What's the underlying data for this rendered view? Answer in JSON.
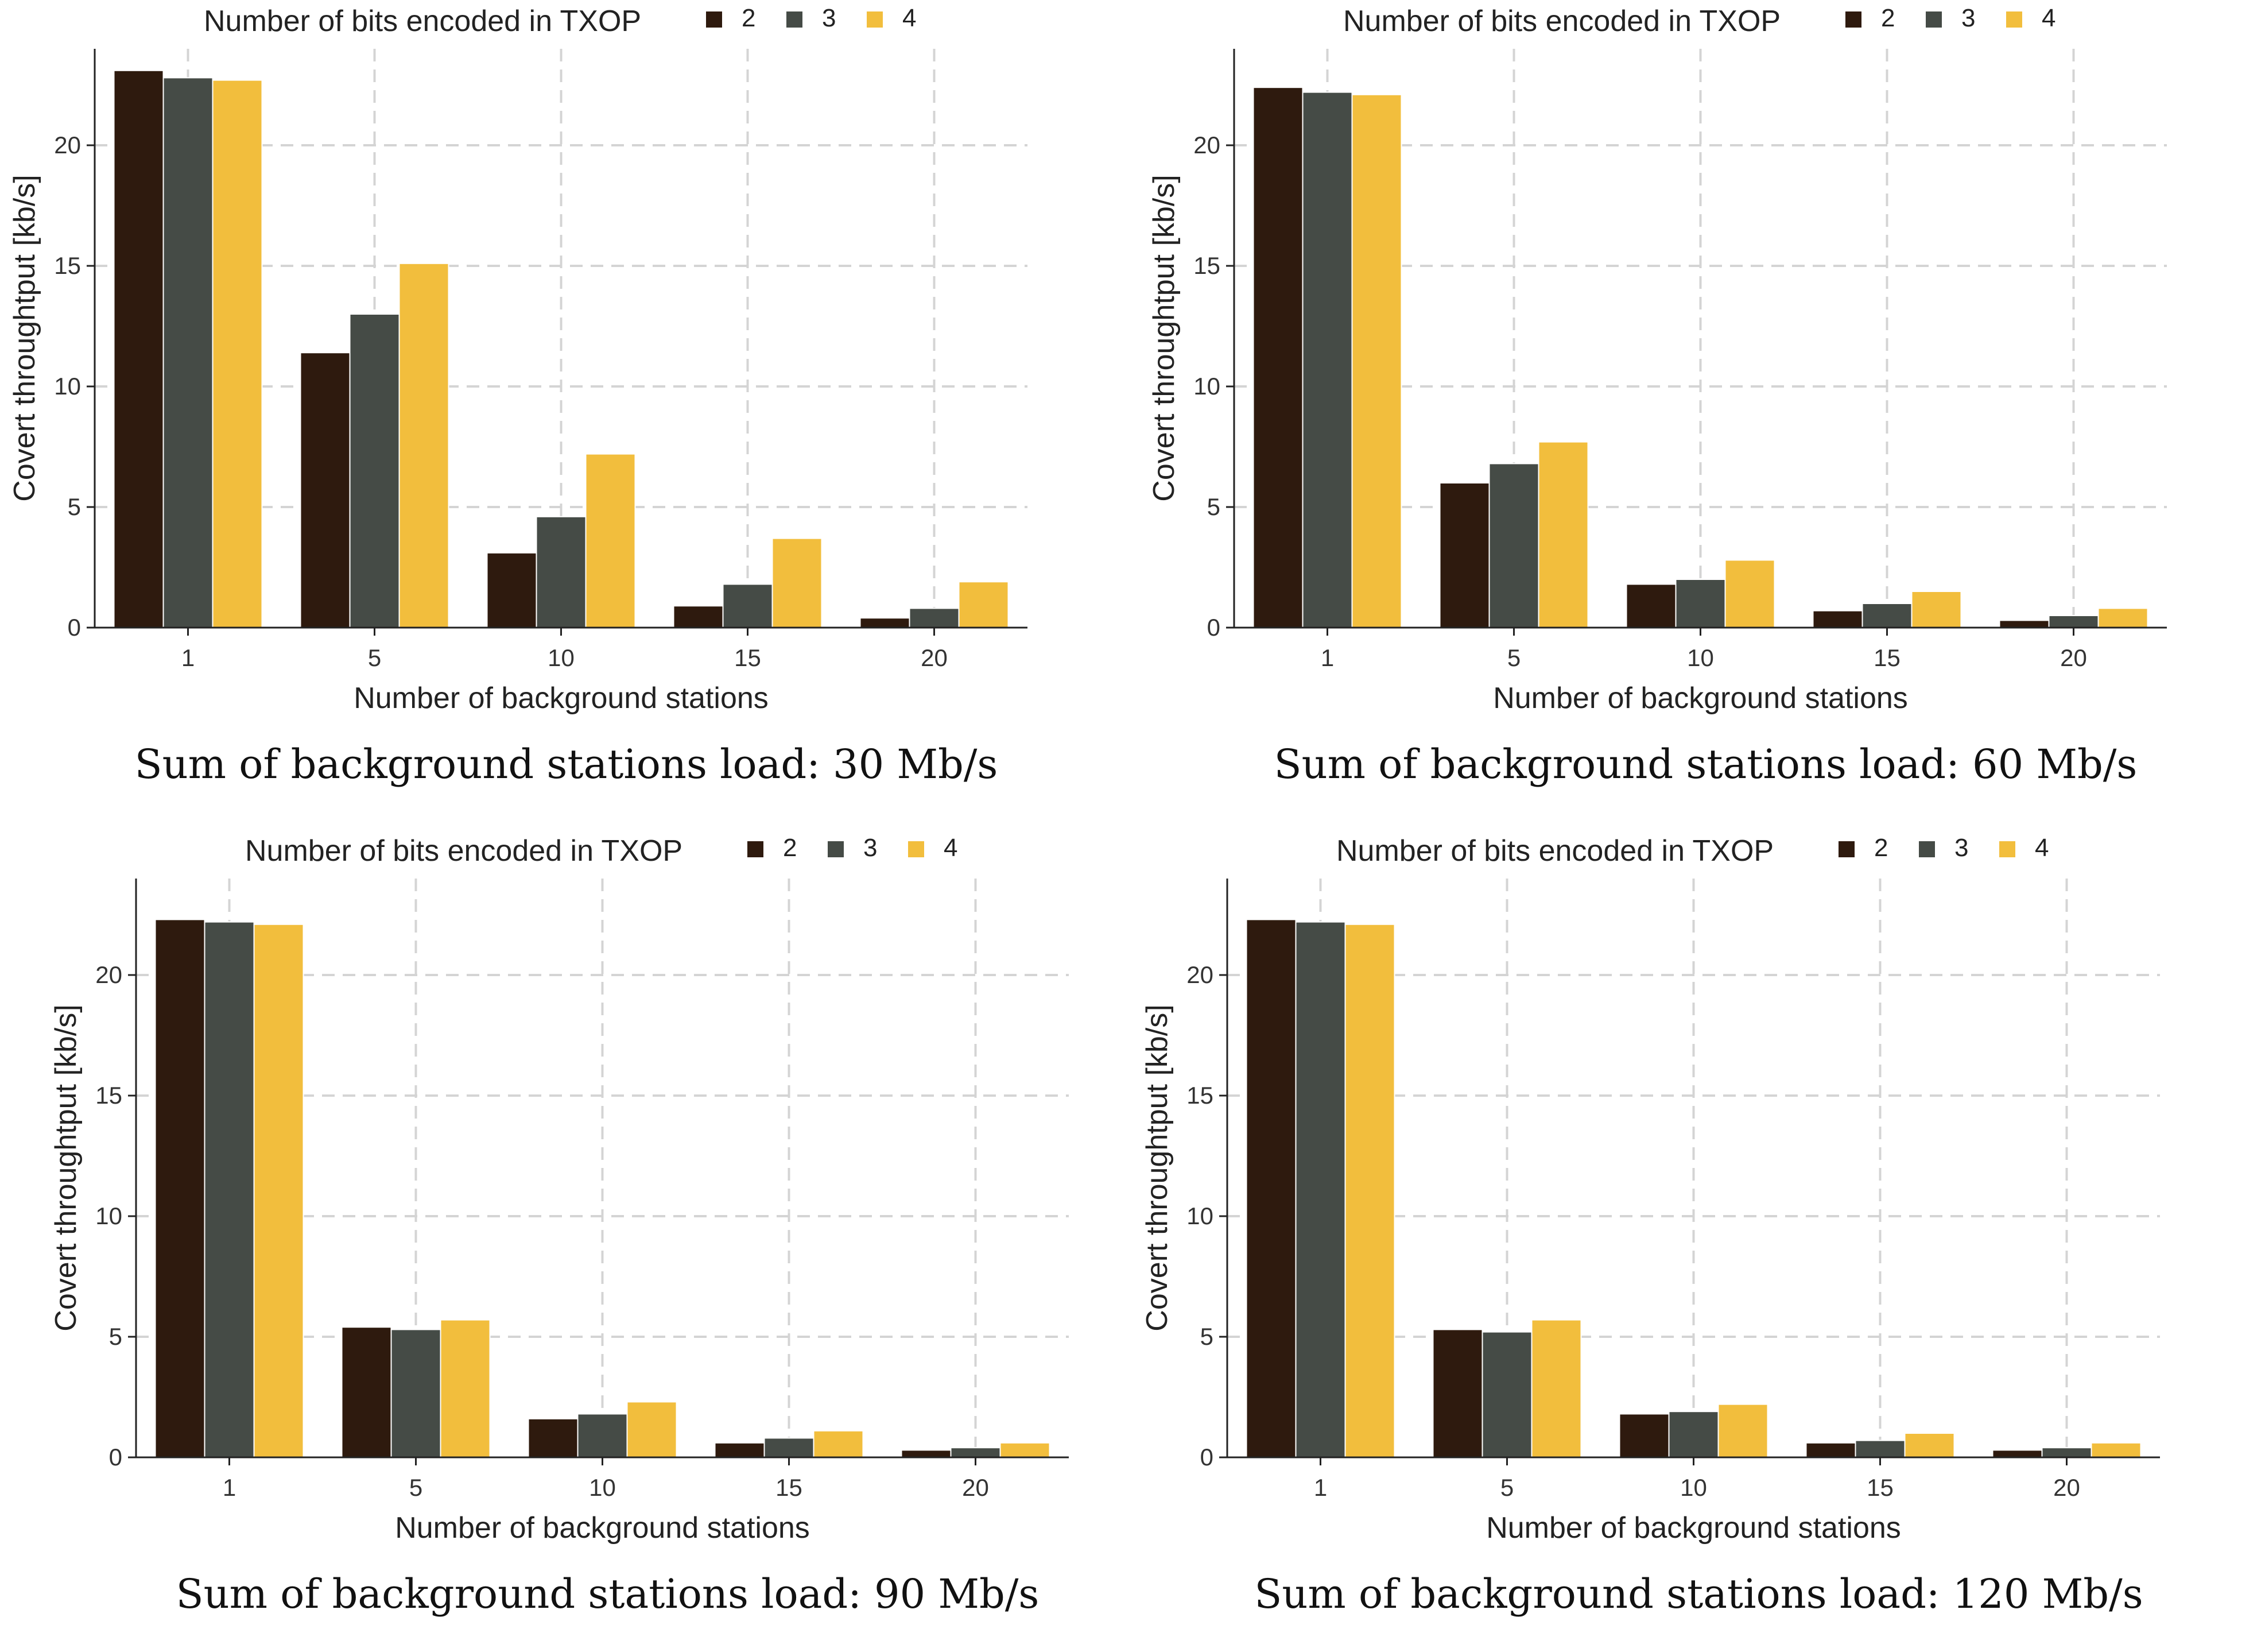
{
  "figure": {
    "legend_title": "Number of bits encoded in TXOP",
    "xlabel": "Number of background stations",
    "ylabel": "Covert throughtput [kb/s]",
    "colors": {
      "2": "#2e1a0e",
      "3": "#454b46",
      "4": "#f2be3d"
    }
  },
  "chart_data": [
    {
      "type": "bar",
      "caption": "Sum of background stations load: 30 Mb/s",
      "legend_title": "Number of bits encoded in TXOP",
      "xlabel": "Number of background stations",
      "ylabel": "Covert throughtput [kb/s]",
      "categories": [
        "1",
        "5",
        "10",
        "15",
        "20"
      ],
      "ylim": [
        0,
        24
      ],
      "yticks": [
        "0",
        "5",
        "10",
        "15",
        "20"
      ],
      "series": [
        {
          "name": "2",
          "color": "#2e1a0e",
          "values": [
            23.1,
            11.4,
            3.1,
            0.9,
            0.4
          ]
        },
        {
          "name": "3",
          "color": "#454b46",
          "values": [
            22.8,
            13.0,
            4.6,
            1.8,
            0.8
          ]
        },
        {
          "name": "4",
          "color": "#f2be3d",
          "values": [
            22.7,
            15.1,
            7.2,
            3.7,
            1.9
          ]
        }
      ]
    },
    {
      "type": "bar",
      "caption": "Sum of background stations load: 60 Mb/s",
      "legend_title": "Number of bits encoded in TXOP",
      "xlabel": "Number of background stations",
      "ylabel": "Covert throughtput [kb/s]",
      "categories": [
        "1",
        "5",
        "10",
        "15",
        "20"
      ],
      "ylim": [
        0,
        24
      ],
      "yticks": [
        "0",
        "5",
        "10",
        "15",
        "20"
      ],
      "series": [
        {
          "name": "2",
          "color": "#2e1a0e",
          "values": [
            22.4,
            6.0,
            1.8,
            0.7,
            0.3
          ]
        },
        {
          "name": "3",
          "color": "#454b46",
          "values": [
            22.2,
            6.8,
            2.0,
            1.0,
            0.5
          ]
        },
        {
          "name": "4",
          "color": "#f2be3d",
          "values": [
            22.1,
            7.7,
            2.8,
            1.5,
            0.8
          ]
        }
      ]
    },
    {
      "type": "bar",
      "caption": "Sum of background stations load: 90 Mb/s",
      "legend_title": "Number of bits encoded in TXOP",
      "xlabel": "Number of background stations",
      "ylabel": "Covert throughtput [kb/s]",
      "categories": [
        "1",
        "5",
        "10",
        "15",
        "20"
      ],
      "ylim": [
        0,
        24
      ],
      "yticks": [
        "0",
        "5",
        "10",
        "15",
        "20"
      ],
      "series": [
        {
          "name": "2",
          "color": "#2e1a0e",
          "values": [
            22.3,
            5.4,
            1.6,
            0.6,
            0.3
          ]
        },
        {
          "name": "3",
          "color": "#454b46",
          "values": [
            22.2,
            5.3,
            1.8,
            0.8,
            0.4
          ]
        },
        {
          "name": "4",
          "color": "#f2be3d",
          "values": [
            22.1,
            5.7,
            2.3,
            1.1,
            0.6
          ]
        }
      ]
    },
    {
      "type": "bar",
      "caption": "Sum of background stations load: 120 Mb/s",
      "legend_title": "Number of bits encoded in TXOP",
      "xlabel": "Number of background stations",
      "ylabel": "Covert throughtput [kb/s]",
      "categories": [
        "1",
        "5",
        "10",
        "15",
        "20"
      ],
      "ylim": [
        0,
        24
      ],
      "yticks": [
        "0",
        "5",
        "10",
        "15",
        "20"
      ],
      "series": [
        {
          "name": "2",
          "color": "#2e1a0e",
          "values": [
            22.3,
            5.3,
            1.8,
            0.6,
            0.3
          ]
        },
        {
          "name": "3",
          "color": "#454b46",
          "values": [
            22.2,
            5.2,
            1.9,
            0.7,
            0.4
          ]
        },
        {
          "name": "4",
          "color": "#f2be3d",
          "values": [
            22.1,
            5.7,
            2.2,
            1.0,
            0.6
          ]
        }
      ]
    }
  ]
}
